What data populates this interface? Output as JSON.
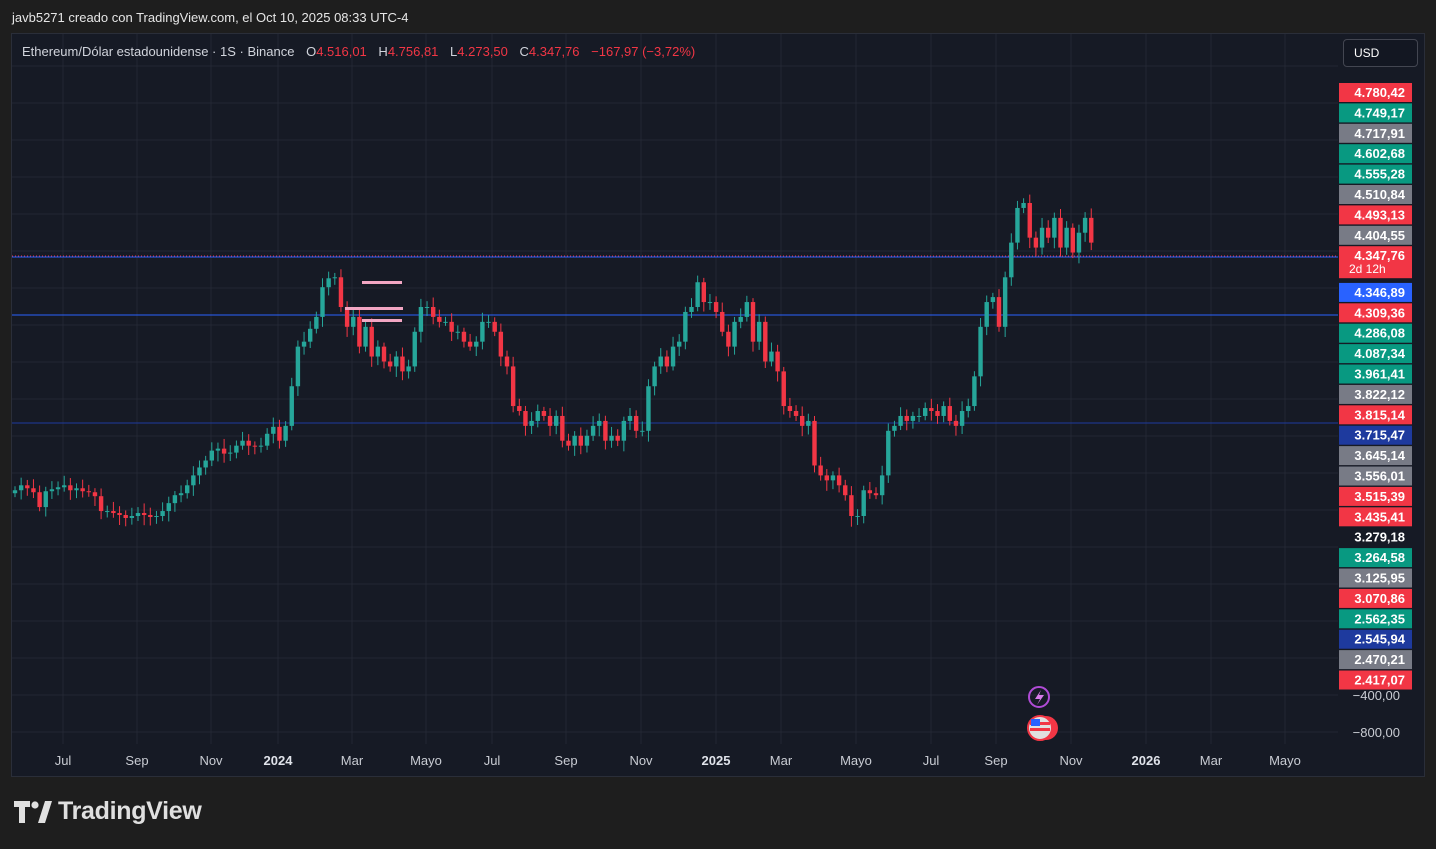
{
  "header": {
    "publisher_line": "javb5271 creado con TradingView.com, el Oct 10, 2025 08:33 UTC-4"
  },
  "legend": {
    "symbol": "Ethereum/Dólar estadounidense · 1S · Binance",
    "open_key": "O",
    "open": "4.516,01",
    "high_key": "H",
    "high": "4.756,81",
    "low_key": "L",
    "low": "4.273,50",
    "close_key": "C",
    "close": "4.347,76",
    "change": "−167,97 (−3,72%)"
  },
  "currency_button": "USD",
  "brand": "TradingView",
  "colors": {
    "up": "#26a69a",
    "down": "#f23645",
    "grid": "#232733",
    "price_line": "#2962ff"
  },
  "chart_data": {
    "type": "candlestick",
    "interval": "1S",
    "x_ticks": [
      {
        "label": "Jul",
        "bold": false
      },
      {
        "label": "Sep",
        "bold": false
      },
      {
        "label": "Nov",
        "bold": false
      },
      {
        "label": "2024",
        "bold": true
      },
      {
        "label": "Mar",
        "bold": false
      },
      {
        "label": "Mayo",
        "bold": false
      },
      {
        "label": "Jul",
        "bold": false
      },
      {
        "label": "Sep",
        "bold": false
      },
      {
        "label": "Nov",
        "bold": false
      },
      {
        "label": "2025",
        "bold": true
      },
      {
        "label": "Mar",
        "bold": false
      },
      {
        "label": "Mayo",
        "bold": false
      },
      {
        "label": "Jul",
        "bold": false
      },
      {
        "label": "Sep",
        "bold": false
      },
      {
        "label": "Nov",
        "bold": false
      },
      {
        "label": "2026",
        "bold": true
      },
      {
        "label": "Mar",
        "bold": false
      },
      {
        "label": "Mayo",
        "bold": false
      }
    ],
    "y_ticks": [
      "−400,00",
      "−800,00"
    ],
    "price_labels": [
      {
        "text": "4.780,42",
        "bg": "#f23645",
        "fg": "#ffffff"
      },
      {
        "text": "4.749,17",
        "bg": "#089981",
        "fg": "#ffffff"
      },
      {
        "text": "4.717,91",
        "bg": "#787b86",
        "fg": "#ffffff"
      },
      {
        "text": "4.602,68",
        "bg": "#089981",
        "fg": "#ffffff"
      },
      {
        "text": "4.555,28",
        "bg": "#089981",
        "fg": "#ffffff"
      },
      {
        "text": "4.510,84",
        "bg": "#787b86",
        "fg": "#ffffff"
      },
      {
        "text": "4.493,13",
        "bg": "#f23645",
        "fg": "#ffffff"
      },
      {
        "text": "4.404,55",
        "bg": "#787b86",
        "fg": "#ffffff"
      },
      {
        "text": "4.347,76",
        "bg": "#f23645",
        "fg": "#ffffff",
        "countdown": "2d 12h"
      },
      {
        "text": "4.346,89",
        "bg": "#2962ff",
        "fg": "#ffffff"
      },
      {
        "text": "4.309,36",
        "bg": "#f23645",
        "fg": "#ffffff"
      },
      {
        "text": "4.286,08",
        "bg": "#089981",
        "fg": "#ffffff"
      },
      {
        "text": "4.087,34",
        "bg": "#089981",
        "fg": "#ffffff"
      },
      {
        "text": "3.961,41",
        "bg": "#089981",
        "fg": "#ffffff"
      },
      {
        "text": "3.822,12",
        "bg": "#787b86",
        "fg": "#ffffff"
      },
      {
        "text": "3.815,14",
        "bg": "#f23645",
        "fg": "#ffffff"
      },
      {
        "text": "3.715,47",
        "bg": "#1e3a9e",
        "fg": "#ffffff"
      },
      {
        "text": "3.645,14",
        "bg": "#787b86",
        "fg": "#ffffff"
      },
      {
        "text": "3.556,01",
        "bg": "#787b86",
        "fg": "#ffffff"
      },
      {
        "text": "3.515,39",
        "bg": "#f23645",
        "fg": "#ffffff"
      },
      {
        "text": "3.435,41",
        "bg": "#f23645",
        "fg": "#ffffff"
      },
      {
        "text": "3.279,18",
        "bg": "none",
        "fg": "#ffffff"
      },
      {
        "text": "3.264,58",
        "bg": "#089981",
        "fg": "#ffffff"
      },
      {
        "text": "3.125,95",
        "bg": "#787b86",
        "fg": "#ffffff"
      },
      {
        "text": "3.070,86",
        "bg": "#f23645",
        "fg": "#ffffff"
      },
      {
        "text": "2.562,35",
        "bg": "#089981",
        "fg": "#ffffff"
      },
      {
        "text": "2.545,94",
        "bg": "#1e3a9e",
        "fg": "#ffffff"
      },
      {
        "text": "2.470,21",
        "bg": "#787b86",
        "fg": "#ffffff"
      },
      {
        "text": "2.417,07",
        "bg": "#f23645",
        "fg": "#ffffff"
      }
    ],
    "candles_close": [
      1850,
      1900,
      1870,
      1830,
      1680,
      1840,
      1860,
      1880,
      1900,
      1850,
      1870,
      1840,
      1830,
      1790,
      1640,
      1640,
      1620,
      1600,
      1570,
      1590,
      1620,
      1600,
      1580,
      1590,
      1640,
      1720,
      1800,
      1820,
      1900,
      2000,
      2080,
      2150,
      2250,
      2270,
      2220,
      2230,
      2300,
      2350,
      2300,
      2290,
      2300,
      2420,
      2490,
      2350,
      2500,
      2900,
      3300,
      3350,
      3480,
      3600,
      3900,
      3990,
      4000,
      3700,
      3500,
      3600,
      3300,
      3500,
      3200,
      3300,
      3150,
      3100,
      3200,
      3050,
      3100,
      3450,
      3700,
      3700,
      3600,
      3550,
      3550,
      3450,
      3450,
      3350,
      3300,
      3350,
      3550,
      3550,
      3450,
      3200,
      3100,
      2700,
      2650,
      2500,
      2550,
      2650,
      2600,
      2500,
      2600,
      2350,
      2300,
      2400,
      2300,
      2400,
      2500,
      2550,
      2350,
      2400,
      2350,
      2550,
      2600,
      2450,
      2450,
      2900,
      3100,
      3200,
      3100,
      3300,
      3350,
      3650,
      3700,
      3950,
      3750,
      3750,
      3650,
      3450,
      3300,
      3550,
      3600,
      3750,
      3350,
      3550,
      3150,
      3250,
      3050,
      2700,
      2650,
      2600,
      2500,
      2550,
      2100,
      2000,
      1950,
      2000,
      1900,
      1800,
      1590,
      1590,
      1850,
      1820,
      1800,
      2000,
      2450,
      2500,
      2600,
      2550,
      2600,
      2600,
      2680,
      2650,
      2600,
      2700,
      2550,
      2500,
      2650,
      2700,
      3000,
      3500,
      3750,
      3800,
      3500,
      4000,
      4350,
      4700,
      4750,
      4400,
      4300,
      4500,
      4400,
      4600,
      4300,
      4500,
      4250,
      4450,
      4600,
      4350
    ]
  }
}
